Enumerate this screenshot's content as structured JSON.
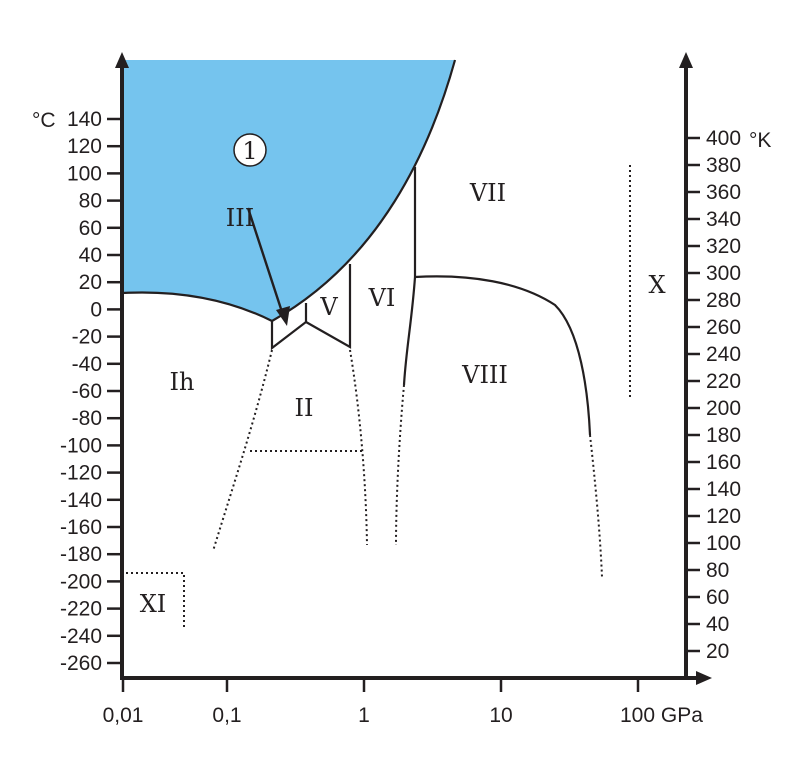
{
  "colors": {
    "liquid": "#75c4ee",
    "ink": "#231f20"
  },
  "left_axis": {
    "unit": "°C",
    "ticks": [
      "140",
      "120",
      "100",
      "80",
      "60",
      "40",
      "20",
      "0",
      "-20",
      "-40",
      "-60",
      "-80",
      "-100",
      "-120",
      "-140",
      "-160",
      "-180",
      "-200",
      "-220",
      "-240",
      "-260"
    ]
  },
  "right_axis": {
    "unit": "°K",
    "ticks": [
      "400",
      "380",
      "360",
      "340",
      "320",
      "300",
      "280",
      "260",
      "240",
      "220",
      "200",
      "180",
      "160",
      "140",
      "120",
      "100",
      "80",
      "60",
      "40",
      "20"
    ]
  },
  "x_axis": {
    "ticks": [
      "0,01",
      "0,1",
      "1",
      "10",
      "100 GPa"
    ]
  },
  "phases": {
    "liquid": "1",
    "III": "III",
    "V": "V",
    "VI": "VI",
    "VII": "VII",
    "VIII": "VIII",
    "Ih": "Ih",
    "II": "II",
    "X": "X",
    "XI": "XI"
  }
}
